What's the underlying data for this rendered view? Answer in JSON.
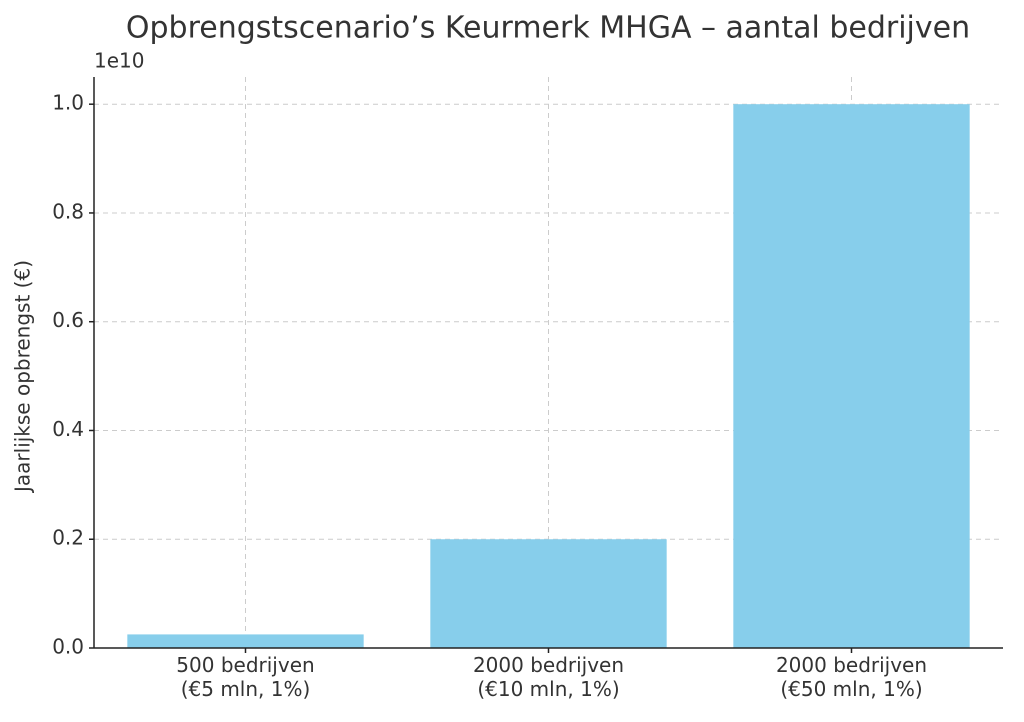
{
  "chart_data": {
    "type": "bar",
    "title": "Opbrengstscenario’s Keurmerk MHGA – aantal bedrijven",
    "y_label": "Jaarlijkse opbrengst (€)",
    "y_offset_label": "1e10",
    "categories": [
      "500 bedrijven\n(€5 mln, 1%)",
      "2000 bedrijven\n(€10 mln, 1%)",
      "2000 bedrijven\n(€50 mln, 1%)"
    ],
    "values": [
      0.025,
      0.2,
      1.0
    ],
    "color": "#87ceeb",
    "ylim": [
      0,
      1.05
    ],
    "yticks": [
      {
        "value": 0,
        "label": "0.0"
      },
      0.2,
      0.4,
      0.6,
      0.8,
      {
        "value": 1,
        "label": "1.0"
      }
    ],
    "grid": true
  }
}
